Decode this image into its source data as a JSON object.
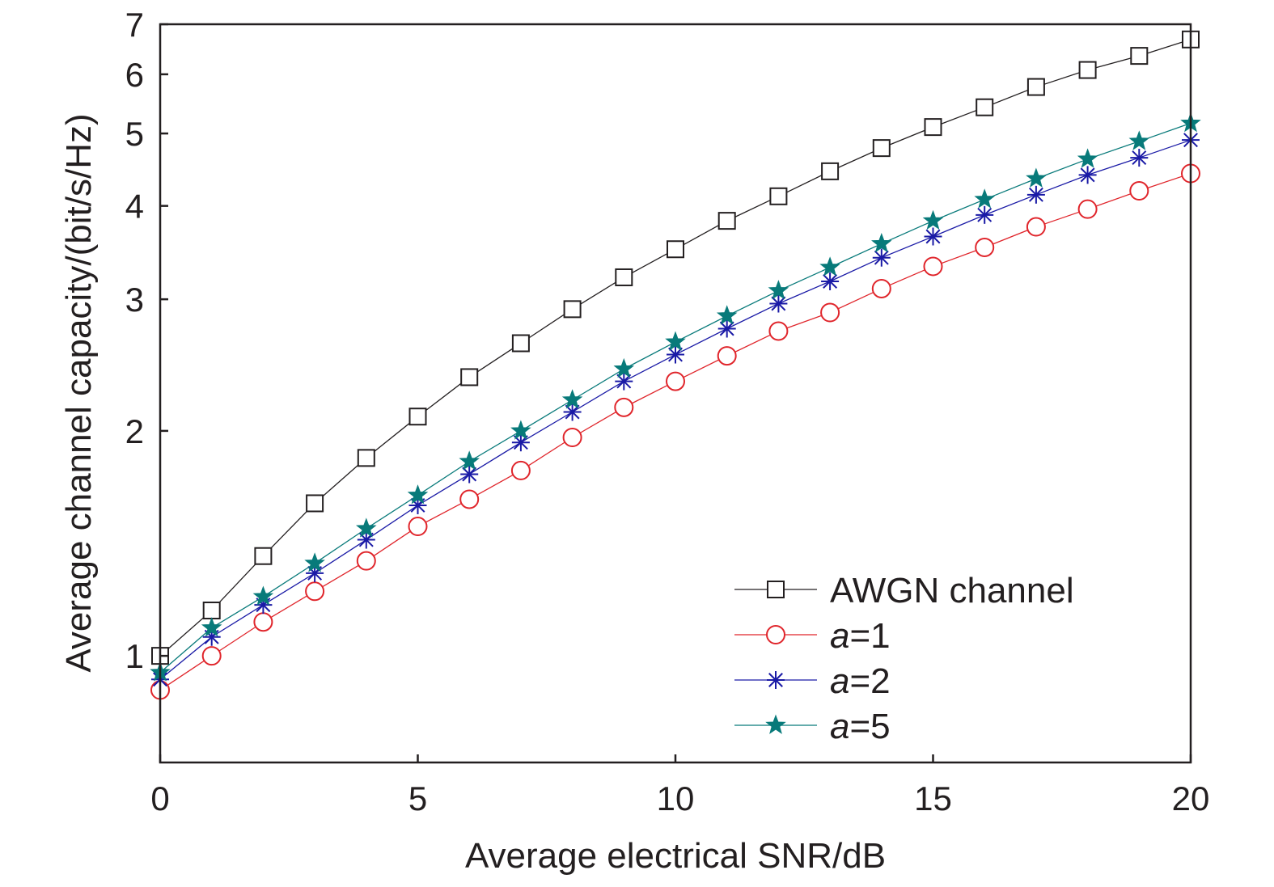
{
  "chart_data": {
    "type": "line",
    "title": "",
    "xlabel": "Average electrical SNR/dB",
    "ylabel": "Average channel capacity/(bit/s/Hz)",
    "xlim": [
      0,
      20
    ],
    "ylim": [
      0.72,
      7
    ],
    "yscale": "log",
    "grid": false,
    "legend_position": "bottom-right",
    "x_ticks": [
      0,
      5,
      10,
      15,
      20
    ],
    "x_tick_labels": [
      "0",
      "5",
      "10",
      "15",
      "20"
    ],
    "y_ticks": [
      1,
      2,
      3,
      4,
      5,
      6,
      7
    ],
    "y_tick_labels": [
      "1",
      "2",
      "3",
      "4",
      "5",
      "6",
      "7"
    ],
    "x": [
      0,
      1,
      2,
      3,
      4,
      5,
      6,
      7,
      8,
      9,
      10,
      11,
      12,
      13,
      14,
      15,
      16,
      17,
      18,
      19,
      20
    ],
    "series": [
      {
        "name": "AWGN channel",
        "name_prefix": "",
        "name_suffix": "AWGN channel",
        "color": "#231f20",
        "marker": "square",
        "values": [
          1.0,
          1.15,
          1.36,
          1.6,
          1.84,
          2.09,
          2.36,
          2.62,
          2.91,
          3.21,
          3.5,
          3.82,
          4.12,
          4.45,
          4.78,
          5.1,
          5.42,
          5.77,
          6.08,
          6.35,
          6.68
        ]
      },
      {
        "name": "a=1",
        "name_prefix": "a",
        "name_suffix": "=1",
        "color": "#e0252b",
        "marker": "circle",
        "values": [
          0.9,
          1.0,
          1.11,
          1.22,
          1.34,
          1.49,
          1.62,
          1.77,
          1.96,
          2.15,
          2.33,
          2.52,
          2.72,
          2.88,
          3.1,
          3.32,
          3.52,
          3.75,
          3.96,
          4.19,
          4.42
        ]
      },
      {
        "name": "a=2",
        "name_prefix": "a",
        "name_suffix": "=2",
        "color": "#1a1aa6",
        "marker": "asterisk",
        "values": [
          0.93,
          1.06,
          1.17,
          1.29,
          1.43,
          1.59,
          1.75,
          1.93,
          2.12,
          2.33,
          2.53,
          2.74,
          2.96,
          3.17,
          3.41,
          3.64,
          3.89,
          4.14,
          4.4,
          4.64,
          4.9
        ]
      },
      {
        "name": "a=5",
        "name_prefix": "a",
        "name_suffix": "=5",
        "color": "#087a7a",
        "marker": "star",
        "values": [
          0.95,
          1.09,
          1.2,
          1.33,
          1.48,
          1.64,
          1.82,
          2.0,
          2.2,
          2.42,
          2.63,
          2.85,
          3.08,
          3.31,
          3.56,
          3.82,
          4.08,
          4.35,
          4.62,
          4.88,
          5.16
        ]
      }
    ]
  }
}
